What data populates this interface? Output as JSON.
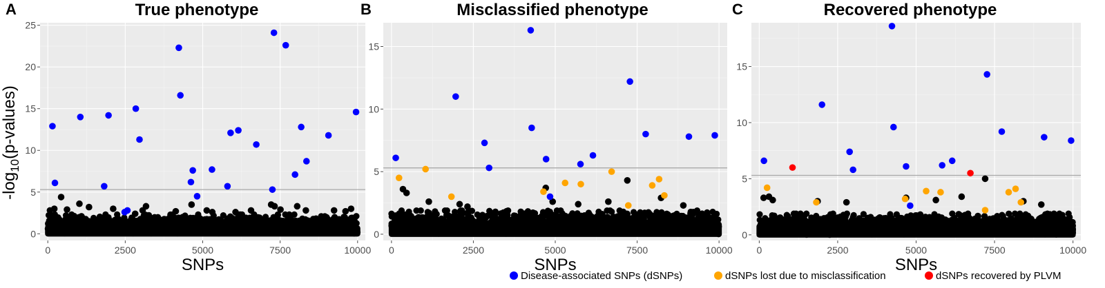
{
  "figure": {
    "ylabel": "-log10(p-values)",
    "legend": [
      {
        "label": "Disease-associated SNPs (dSNPs)",
        "color": "#0000ff"
      },
      {
        "label": "dSNPs lost due to misclassification",
        "color": "#ffa500"
      },
      {
        "label": "dSNPs recovered by PLVM",
        "color": "#ff0000"
      }
    ]
  },
  "chart_data": [
    {
      "type": "scatter",
      "panel": "A",
      "title": "True phenotype",
      "xlabel": "SNPs",
      "ylabel": "-log10(p-values)",
      "xlim": [
        -250,
        10250
      ],
      "ylim": [
        -0.8,
        25.3
      ],
      "xticks": [
        0,
        2500,
        5000,
        7500,
        10000
      ],
      "yticks": [
        0,
        5,
        10,
        15,
        20,
        25
      ],
      "threshold": 5.3,
      "grid": true,
      "background_noise": {
        "color": "#000000",
        "x_range": [
          0,
          10000
        ],
        "y_range": [
          0,
          2.2
        ]
      },
      "series": [
        {
          "name": "Disease-associated SNPs (dSNPs)",
          "color": "#0000ff",
          "points": [
            [
              150,
              12.9
            ],
            [
              230,
              6.1
            ],
            [
              1050,
              14.0
            ],
            [
              1820,
              5.7
            ],
            [
              1960,
              14.2
            ],
            [
              2480,
              2.6
            ],
            [
              2570,
              2.8
            ],
            [
              2840,
              15.0
            ],
            [
              2960,
              11.3
            ],
            [
              4230,
              22.3
            ],
            [
              4280,
              16.6
            ],
            [
              4620,
              6.2
            ],
            [
              4680,
              7.6
            ],
            [
              4820,
              4.5
            ],
            [
              5300,
              7.7
            ],
            [
              5800,
              5.7
            ],
            [
              5900,
              12.1
            ],
            [
              6150,
              12.4
            ],
            [
              6730,
              10.7
            ],
            [
              7250,
              5.3
            ],
            [
              7300,
              24.1
            ],
            [
              7680,
              22.6
            ],
            [
              7980,
              7.1
            ],
            [
              8180,
              12.8
            ],
            [
              8350,
              8.7
            ],
            [
              9060,
              11.8
            ],
            [
              9950,
              14.6
            ]
          ]
        },
        {
          "name": "dSNPs lost due to misclassification",
          "color": "#ffa500",
          "points": []
        },
        {
          "name": "dSNPs recovered by PLVM",
          "color": "#ff0000",
          "points": []
        },
        {
          "name": "",
          "color": "#000000",
          "points": [
            [
              70,
              2.8
            ],
            [
              210,
              3.0
            ],
            [
              430,
              4.4
            ],
            [
              620,
              2.9
            ],
            [
              1020,
              3.6
            ],
            [
              1330,
              3.2
            ],
            [
              2110,
              3.0
            ],
            [
              2820,
              2.4
            ],
            [
              3060,
              2.8
            ],
            [
              3170,
              3.3
            ],
            [
              4130,
              2.7
            ],
            [
              4640,
              3.5
            ],
            [
              5130,
              2.8
            ],
            [
              5310,
              2.6
            ],
            [
              6060,
              2.6
            ],
            [
              6560,
              2.8
            ],
            [
              7210,
              3.5
            ],
            [
              7320,
              3.3
            ],
            [
              7510,
              2.9
            ],
            [
              8050,
              3.3
            ],
            [
              8330,
              2.8
            ],
            [
              9240,
              2.8
            ],
            [
              9610,
              2.7
            ],
            [
              9790,
              3.0
            ]
          ]
        }
      ]
    },
    {
      "type": "scatter",
      "panel": "B",
      "title": "Misclassified phenotype",
      "xlabel": "SNPs",
      "ylabel": "",
      "xlim": [
        -250,
        10250
      ],
      "ylim": [
        -0.5,
        16.9
      ],
      "xticks": [
        0,
        2500,
        5000,
        7500,
        10000
      ],
      "yticks": [
        0,
        5,
        10,
        15
      ],
      "threshold": 5.3,
      "grid": true,
      "background_noise": {
        "color": "#000000",
        "x_range": [
          0,
          10000
        ],
        "y_range": [
          0,
          1.8
        ]
      },
      "series": [
        {
          "name": "Disease-associated SNPs (dSNPs)",
          "color": "#0000ff",
          "points": [
            [
              130,
              6.1
            ],
            [
              1960,
              11.0
            ],
            [
              2840,
              7.3
            ],
            [
              2980,
              5.3
            ],
            [
              4250,
              16.3
            ],
            [
              4280,
              8.5
            ],
            [
              4720,
              6.0
            ],
            [
              4840,
              3.0
            ],
            [
              5770,
              5.6
            ],
            [
              6150,
              6.3
            ],
            [
              7280,
              12.2
            ],
            [
              7760,
              8.0
            ],
            [
              9080,
              7.8
            ],
            [
              9870,
              7.9
            ]
          ]
        },
        {
          "name": "dSNPs lost due to misclassification",
          "color": "#ffa500",
          "points": [
            [
              230,
              4.5
            ],
            [
              1040,
              5.2
            ],
            [
              1830,
              3.0
            ],
            [
              4640,
              3.4
            ],
            [
              5300,
              4.1
            ],
            [
              5780,
              4.0
            ],
            [
              6720,
              5.0
            ],
            [
              7230,
              2.3
            ],
            [
              7960,
              3.9
            ],
            [
              8170,
              4.4
            ],
            [
              8330,
              3.1
            ]
          ]
        },
        {
          "name": "dSNPs recovered by PLVM",
          "color": "#ff0000",
          "points": []
        },
        {
          "name": "",
          "color": "#000000",
          "points": [
            [
              350,
              3.6
            ],
            [
              460,
              3.3
            ],
            [
              1140,
              2.6
            ],
            [
              2080,
              2.4
            ],
            [
              2320,
              2.2
            ],
            [
              4710,
              3.7
            ],
            [
              4920,
              2.6
            ],
            [
              5700,
              2.4
            ],
            [
              6620,
              2.6
            ],
            [
              7200,
              4.3
            ],
            [
              8230,
              2.9
            ],
            [
              8910,
              2.3
            ]
          ]
        }
      ]
    },
    {
      "type": "scatter",
      "panel": "C",
      "title": "Recovered phenotype",
      "xlabel": "SNPs",
      "ylabel": "",
      "xlim": [
        -250,
        10250
      ],
      "ylim": [
        -0.5,
        18.9
      ],
      "xticks": [
        0,
        2500,
        5000,
        7500,
        10000
      ],
      "yticks": [
        0,
        5,
        10,
        15
      ],
      "threshold": 5.3,
      "grid": true,
      "background_noise": {
        "color": "#000000",
        "x_range": [
          0,
          10000
        ],
        "y_range": [
          0,
          1.8
        ]
      },
      "series": [
        {
          "name": "Disease-associated SNPs (dSNPs)",
          "color": "#0000ff",
          "points": [
            [
              150,
              6.6
            ],
            [
              2000,
              11.6
            ],
            [
              2880,
              7.4
            ],
            [
              2990,
              5.8
            ],
            [
              4230,
              18.6
            ],
            [
              4280,
              9.6
            ],
            [
              4680,
              6.1
            ],
            [
              4810,
              2.6
            ],
            [
              5830,
              6.2
            ],
            [
              6150,
              6.6
            ],
            [
              7260,
              14.3
            ],
            [
              7730,
              9.2
            ],
            [
              9080,
              8.7
            ],
            [
              9940,
              8.4
            ]
          ]
        },
        {
          "name": "dSNPs lost due to misclassification",
          "color": "#ffa500",
          "points": [
            [
              250,
              4.2
            ],
            [
              1820,
              2.9
            ],
            [
              4650,
              3.2
            ],
            [
              5320,
              3.9
            ],
            [
              5780,
              3.8
            ],
            [
              7200,
              2.2
            ],
            [
              7950,
              3.8
            ],
            [
              8170,
              4.1
            ],
            [
              8340,
              2.9
            ]
          ]
        },
        {
          "name": "dSNPs recovered by PLVM",
          "color": "#ff0000",
          "points": [
            [
              1060,
              6.0
            ],
            [
              6730,
              5.5
            ]
          ]
        },
        {
          "name": "",
          "color": "#000000",
          "points": [
            [
              140,
              3.3
            ],
            [
              310,
              3.4
            ],
            [
              430,
              3.1
            ],
            [
              1860,
              3.0
            ],
            [
              2780,
              2.9
            ],
            [
              4680,
              3.3
            ],
            [
              5630,
              3.1
            ],
            [
              6450,
              3.4
            ],
            [
              7200,
              5.0
            ],
            [
              8420,
              3.0
            ],
            [
              8990,
              2.7
            ]
          ]
        }
      ]
    }
  ]
}
